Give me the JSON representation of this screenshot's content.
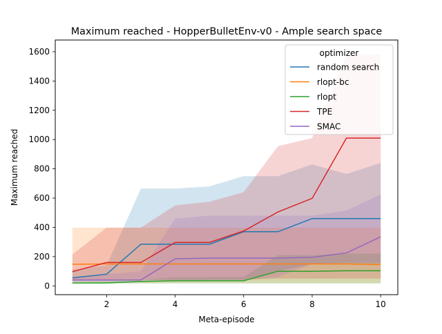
{
  "chart_data": {
    "type": "line",
    "title": "Maximum reached - HopperBulletEnv-v0 - Ample search space",
    "xlabel": "Meta-episode",
    "ylabel": "Maximum reached",
    "xlim": [
      0.5,
      10.5
    ],
    "ylim": [
      -60,
      1680
    ],
    "xticks": [
      2,
      4,
      6,
      8,
      10
    ],
    "yticks": [
      0,
      200,
      400,
      600,
      800,
      1000,
      1200,
      1400,
      1600
    ],
    "grid": false,
    "legend_title": "optimizer",
    "legend_position": "top-right",
    "x": [
      1,
      2,
      3,
      4,
      5,
      6,
      7,
      8,
      9,
      10
    ],
    "series": [
      {
        "name": "random search",
        "color": "#1f77b4",
        "values": [
          55,
          80,
          285,
          285,
          285,
          370,
          370,
          460,
          460,
          460
        ],
        "band_low": [
          25,
          25,
          40,
          40,
          40,
          40,
          100,
          150,
          150,
          150
        ],
        "band_high": [
          110,
          140,
          665,
          665,
          680,
          750,
          750,
          830,
          765,
          840
        ]
      },
      {
        "name": "rlopt-bc",
        "color": "#ff7f0e",
        "values": [
          148,
          150,
          150,
          150,
          150,
          150,
          150,
          150,
          150,
          145
        ],
        "band_low": [
          20,
          20,
          20,
          20,
          20,
          20,
          20,
          20,
          20,
          20
        ],
        "band_high": [
          398,
          398,
          398,
          398,
          398,
          398,
          398,
          398,
          398,
          398
        ]
      },
      {
        "name": "rlopt",
        "color": "#2ca02c",
        "values": [
          20,
          20,
          30,
          35,
          35,
          35,
          100,
          100,
          103,
          103
        ],
        "band_low": [
          15,
          15,
          15,
          15,
          15,
          15,
          15,
          15,
          15,
          15
        ],
        "band_high": [
          25,
          30,
          40,
          60,
          60,
          60,
          210,
          210,
          220,
          220
        ]
      },
      {
        "name": "TPE",
        "color": "#d62728",
        "values": [
          97,
          160,
          160,
          297,
          297,
          375,
          505,
          598,
          1010,
          1010
        ],
        "band_low": [
          40,
          40,
          40,
          40,
          40,
          40,
          50,
          50,
          50,
          50
        ],
        "band_high": [
          215,
          398,
          398,
          550,
          575,
          640,
          955,
          1010,
          1580,
          1580
        ]
      },
      {
        "name": "SMAC",
        "color": "#9467bd",
        "values": [
          40,
          40,
          40,
          185,
          190,
          190,
          190,
          195,
          225,
          335
        ],
        "band_low": [
          30,
          30,
          30,
          30,
          40,
          40,
          60,
          150,
          160,
          160
        ],
        "band_high": [
          55,
          80,
          100,
          460,
          480,
          480,
          480,
          480,
          515,
          625
        ]
      }
    ]
  }
}
